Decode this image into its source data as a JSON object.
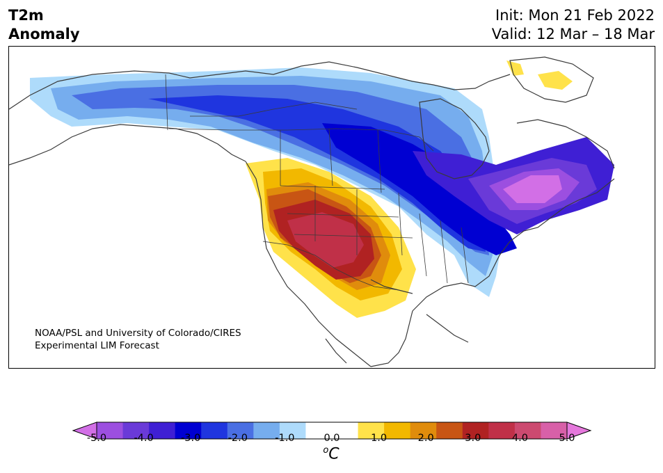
{
  "header": {
    "title_line1": "T2m",
    "title_line2": "Anomaly",
    "init": "Init: Mon 21 Feb 2022",
    "valid": "Valid: 12 Mar – 18 Mar"
  },
  "credit": {
    "line1": "NOAA/PSL and University of Colorado/CIRES",
    "line2": "Experimental LIM Forecast"
  },
  "colorbar": {
    "ticks": [
      "-5.0",
      "-4.0",
      "-3.0",
      "-2.0",
      "-1.0",
      "0.0",
      "1.0",
      "2.0",
      "3.0",
      "4.0",
      "5.0"
    ],
    "unit_sup": "o",
    "unit": "C",
    "colors": [
      "#d26fe6",
      "#9c4fe0",
      "#6a3ad8",
      "#3f1fd4",
      "#0000d2",
      "#1f35df",
      "#4a6fe3",
      "#76adee",
      "#aedbfb",
      "#ffffff",
      "#ffffff",
      "#ffe24a",
      "#f2b800",
      "#e08c0c",
      "#c85514",
      "#b02222",
      "#c03048",
      "#cc4a70",
      "#d860a8",
      "#e578dc"
    ]
  },
  "map": {
    "regions": [
      "canada",
      "alaska",
      "usa",
      "mexico",
      "greenland",
      "hudson-bay",
      "great-lakes"
    ]
  }
}
